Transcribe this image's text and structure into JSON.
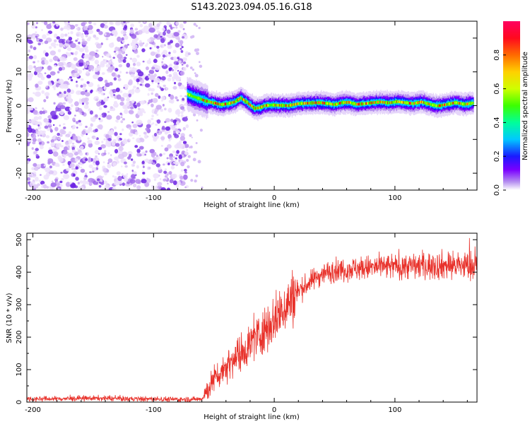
{
  "figure": {
    "title": "S143.2023.094.05.16.G18"
  },
  "chart_data": [
    {
      "type": "heatmap",
      "xlabel": "Height of straight line (km)",
      "ylabel": "Frequency (Hz)",
      "xlim": [
        -205,
        168
      ],
      "ylim": [
        -25,
        25
      ],
      "x_ticks": [
        -200,
        -100,
        0,
        100
      ],
      "y_ticks": [
        -20,
        -10,
        0,
        10,
        20
      ],
      "noise_region_x": [
        -205,
        -72
      ],
      "signal_ridge": {
        "x": [
          -72,
          -68,
          -63,
          -57,
          -50,
          -44,
          -38,
          -32,
          -28,
          -24,
          -20,
          -16,
          -12,
          -8,
          -2,
          5,
          12,
          20,
          26,
          32,
          38,
          45,
          50,
          56,
          62,
          68,
          75,
          82,
          88,
          95,
          102,
          108,
          115,
          122,
          128,
          135,
          142,
          150,
          158,
          165
        ],
        "y": [
          3.5,
          2.8,
          2.2,
          1.4,
          0.8,
          0.3,
          0.6,
          1.2,
          2.3,
          1.4,
          0.2,
          -0.8,
          -0.6,
          0.0,
          0.2,
          0.1,
          0.0,
          0.6,
          0.7,
          0.8,
          0.9,
          0.6,
          0.3,
          0.9,
          1.0,
          0.4,
          0.6,
          0.9,
          1.1,
          0.8,
          1.2,
          0.9,
          0.6,
          1.1,
          0.5,
          -0.1,
          0.3,
          0.9,
          0.4,
          0.8
        ]
      },
      "colorbar": {
        "label": "Normalized spectral amplitude",
        "range": [
          0,
          1
        ],
        "ticks": [
          "0.0",
          "0.2",
          "0.4",
          "0.6",
          "0.8"
        ],
        "tick_values": [
          0.0,
          0.2,
          0.4,
          0.6,
          0.8
        ]
      }
    },
    {
      "type": "line",
      "xlabel": "Height of straight line (km)",
      "ylabel": "SNR (10 * v/v)",
      "xlim": [
        -205,
        168
      ],
      "ylim": [
        0,
        520
      ],
      "x_ticks": [
        -200,
        -100,
        0,
        100
      ],
      "y_ticks": [
        0,
        100,
        200,
        300,
        400,
        500
      ],
      "line_color": "#e8312a",
      "series": [
        {
          "x": [
            -205,
            -180,
            -150,
            -120,
            -90,
            -70,
            -60,
            -55,
            -50,
            -45,
            -40,
            -35,
            -30,
            -25,
            -20,
            -15,
            -10,
            -5,
            0,
            5,
            10,
            15,
            20,
            25,
            30,
            35,
            40,
            50,
            60,
            70,
            80,
            90,
            100,
            110,
            120,
            130,
            140,
            150,
            160,
            168
          ],
          "values": [
            10,
            10,
            12,
            10,
            9,
            8,
            10,
            40,
            70,
            90,
            110,
            130,
            145,
            160,
            180,
            200,
            215,
            235,
            255,
            275,
            300,
            320,
            340,
            355,
            370,
            385,
            395,
            405,
            410,
            412,
            414,
            416,
            418,
            419,
            420,
            420,
            421,
            421,
            420,
            420
          ]
        }
      ]
    }
  ]
}
